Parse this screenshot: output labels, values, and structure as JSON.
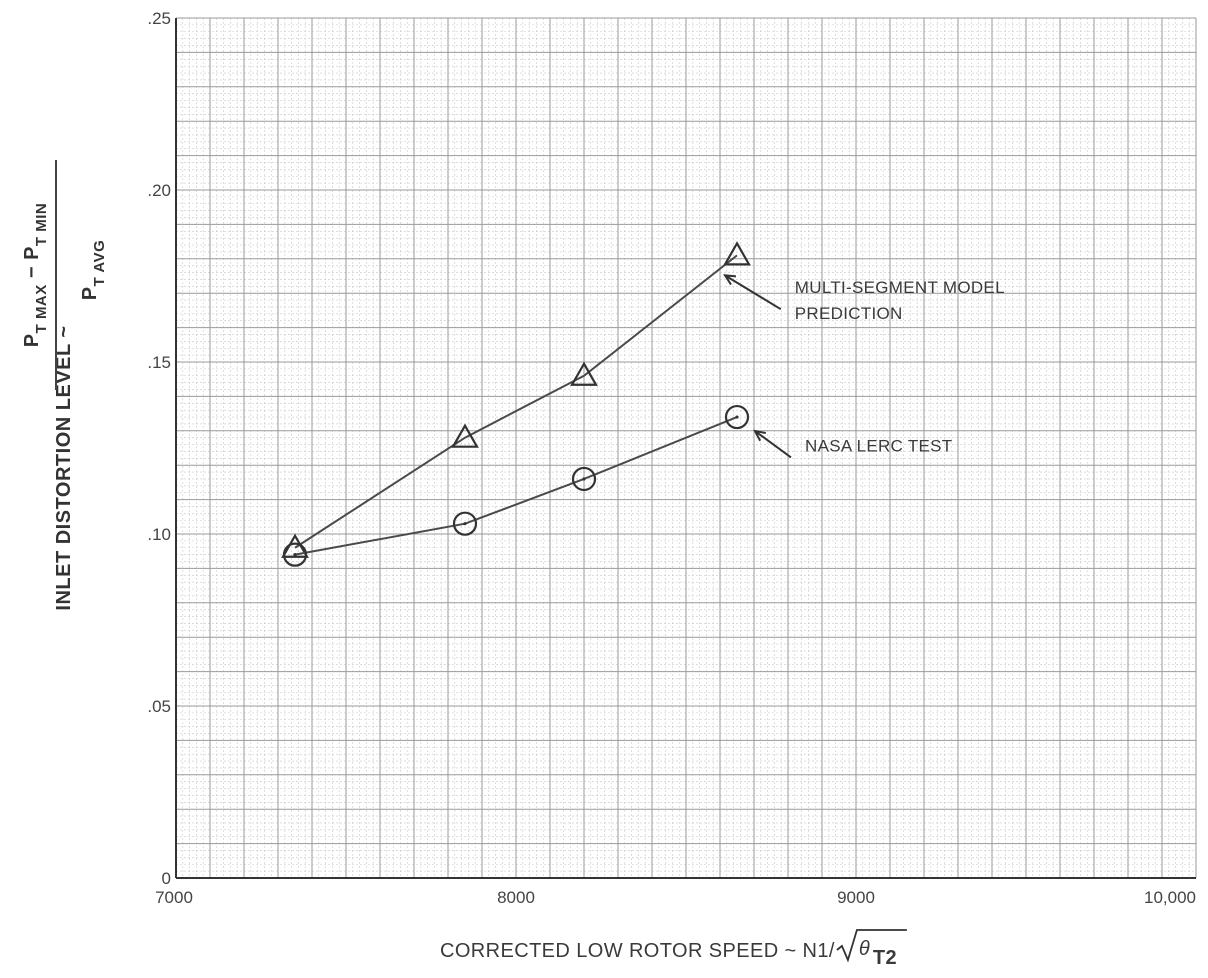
{
  "chart_data": {
    "type": "line",
    "xlabel_text": "CORRECTED LOW ROTOR SPEED ~ N1/",
    "xlabel_theta": "θ",
    "xlabel_sub": "T2",
    "ylabel_main": "INLET DISTORTION LEVEL ~",
    "ylabel_num_p1": "P",
    "ylabel_num_s1": "T MAX",
    "ylabel_num_minus": " − P",
    "ylabel_num_s2": "T MIN",
    "ylabel_den_p": "P",
    "ylabel_den_s": "T AVG",
    "xlim": [
      7000,
      10000
    ],
    "ylim": [
      0,
      0.25
    ],
    "x_ticks": [
      {
        "value": 7000,
        "label": "7000"
      },
      {
        "value": 8000,
        "label": "8000"
      },
      {
        "value": 9000,
        "label": "9000"
      },
      {
        "value": 10000,
        "label": "10,000"
      }
    ],
    "y_ticks": [
      {
        "value": 0,
        "label": "0"
      },
      {
        "value": 0.05,
        "label": ".05"
      },
      {
        "value": 0.1,
        "label": ".10"
      },
      {
        "value": 0.15,
        "label": ".15"
      },
      {
        "value": 0.2,
        "label": ".20"
      },
      {
        "value": 0.25,
        "label": ".25"
      }
    ],
    "grid": true,
    "series": [
      {
        "name_line1": "MULTI-SEGMENT MODEL",
        "name_line2": "PREDICTION",
        "marker": "triangle",
        "x": [
          7350,
          7850,
          8200,
          8650
        ],
        "y": [
          0.096,
          0.128,
          0.146,
          0.181
        ],
        "label_at": [
          8820,
          0.17
        ]
      },
      {
        "name_line1": "NASA LERC TEST",
        "name_line2": "",
        "marker": "circle",
        "x": [
          7350,
          7850,
          8200,
          8650
        ],
        "y": [
          0.094,
          0.103,
          0.116,
          0.134
        ],
        "label_at": [
          8850,
          0.124
        ]
      }
    ],
    "colors": {
      "line": "#4a4a4a",
      "grid": "#9a9a9a",
      "minor_grid": "#c8c8c8"
    }
  }
}
